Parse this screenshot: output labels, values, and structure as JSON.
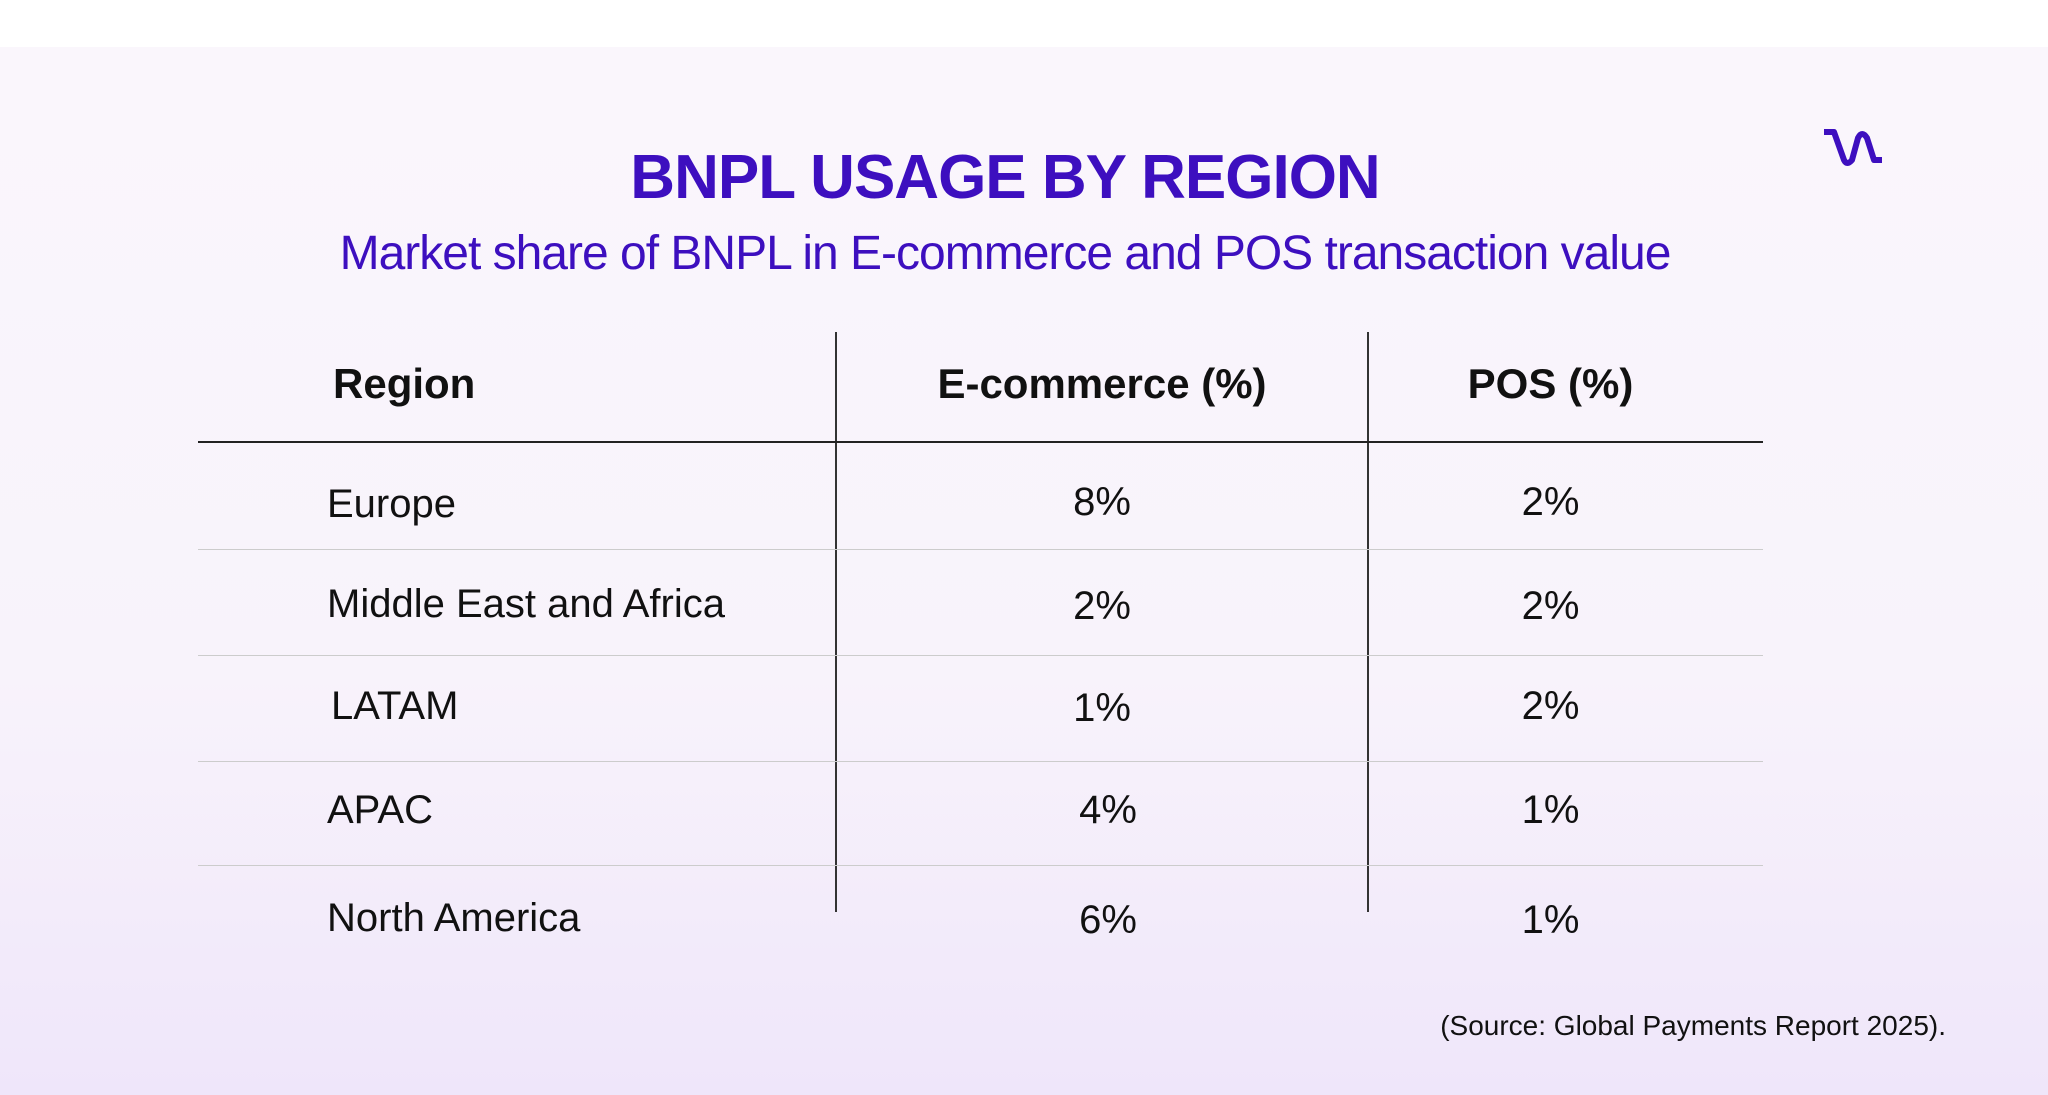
{
  "title": "BNPL USAGE BY REGION",
  "subtitle": "Market share of BNPL in E-commerce  and POS transaction value",
  "logo_icon": "wave-logo-icon",
  "brand_color": "#3d0fbf",
  "table": {
    "headers": [
      "Region",
      "E-commerce (%)",
      "POS (%)"
    ],
    "rows": [
      [
        "Europe",
        "8%",
        "2%"
      ],
      [
        "Middle East and Africa",
        "2%",
        "2%"
      ],
      [
        "LATAM",
        "1%",
        "2%"
      ],
      [
        "APAC",
        "4%",
        "1%"
      ],
      [
        "North America",
        "6%",
        "1%"
      ]
    ]
  },
  "source": "(Source: Global Payments Report 2025)."
}
